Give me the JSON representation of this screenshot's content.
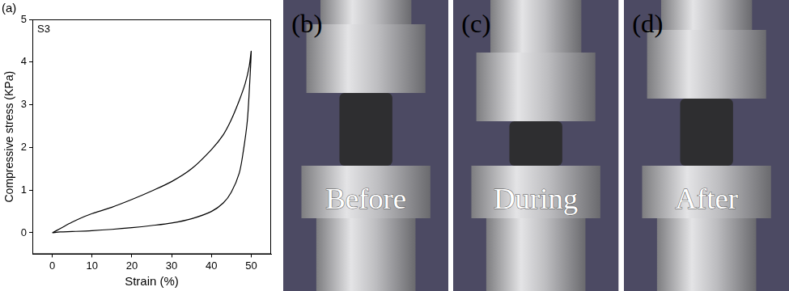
{
  "chart_data": {
    "type": "line",
    "title": "(a)",
    "annotation": "S3",
    "x_label": "Strain (%)",
    "y_label": "Compressive stress (KPa)",
    "x": [
      0,
      2,
      5,
      8,
      10,
      15,
      20,
      25,
      30,
      35,
      40,
      43,
      45,
      47,
      48.5,
      49.5,
      50,
      49.5,
      49,
      48,
      47,
      45,
      43,
      40,
      35,
      30,
      25,
      20,
      15,
      10,
      5,
      2,
      0
    ],
    "values": [
      0,
      0.1,
      0.25,
      0.38,
      0.45,
      0.6,
      0.78,
      0.98,
      1.2,
      1.5,
      1.95,
      2.3,
      2.65,
      3.1,
      3.5,
      3.9,
      4.25,
      3.3,
      2.6,
      1.9,
      1.4,
      0.95,
      0.7,
      0.5,
      0.33,
      0.23,
      0.17,
      0.12,
      0.08,
      0.05,
      0.03,
      0.02,
      0
    ],
    "color": "#000000",
    "xlim": [
      -5,
      55
    ],
    "ylim": [
      -0.5,
      5
    ],
    "xticks": [
      0,
      10,
      20,
      30,
      40,
      50
    ],
    "yticks": [
      0,
      1,
      2,
      3,
      4,
      5
    ],
    "grid": false
  },
  "photos": [
    {
      "label": "(b)",
      "caption": "Before"
    },
    {
      "label": "(c)",
      "caption": "During"
    },
    {
      "label": "(d)",
      "caption": "After"
    }
  ]
}
